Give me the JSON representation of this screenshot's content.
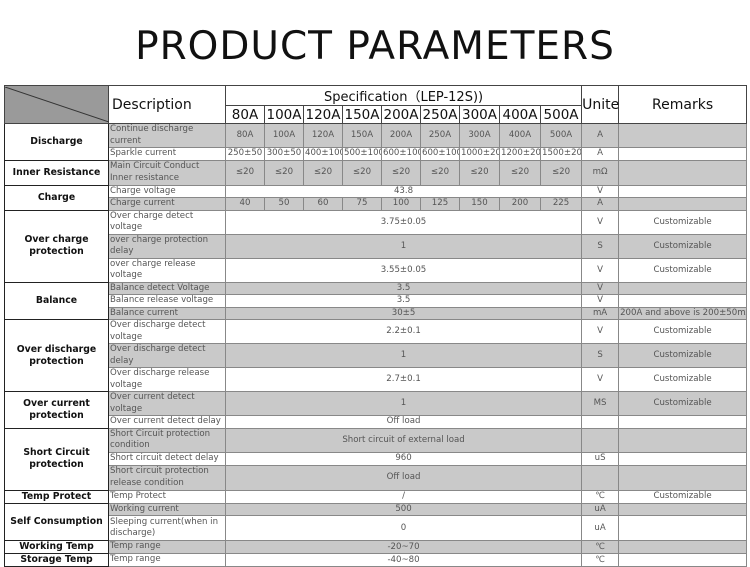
{
  "title": "PRODUCT PARAMETERS",
  "header": {
    "description": "Description",
    "specification": "Specification（LEP-12S))",
    "sizes": [
      "80A",
      "100A",
      "120A",
      "150A",
      "200A",
      "250A",
      "300A",
      "400A",
      "500A"
    ],
    "unit": "Unite",
    "remarks": "Remarks"
  },
  "groups": [
    {
      "category": "Discharge",
      "rows": [
        {
          "desc": "Continue discharge current",
          "values": [
            "80A",
            "100A",
            "120A",
            "150A",
            "200A",
            "250A",
            "300A",
            "400A",
            "500A"
          ],
          "unit": "A",
          "remark": ""
        },
        {
          "desc": "Sparkle current",
          "values": [
            "250±50",
            "300±50",
            "400±100",
            "500±100",
            "600±100",
            "600±100",
            "1000±200",
            "1200±200",
            "1500±200"
          ],
          "unit": "A",
          "remark": ""
        }
      ]
    },
    {
      "category": "Inner Resistance",
      "rows": [
        {
          "desc": "Main Circuit Conduct Inner resistance",
          "values": [
            "≤20",
            "≤20",
            "≤20",
            "≤20",
            "≤20",
            "≤20",
            "≤20",
            "≤20",
            "≤20"
          ],
          "unit": "mΩ",
          "remark": ""
        }
      ]
    },
    {
      "category": "Charge",
      "rows": [
        {
          "desc": "Charge voltage",
          "value": "43.8",
          "unit": "V",
          "remark": ""
        },
        {
          "desc": "Charge current",
          "values": [
            "40",
            "50",
            "60",
            "75",
            "100",
            "125",
            "150",
            "200",
            "225"
          ],
          "unit": "A",
          "remark": ""
        }
      ]
    },
    {
      "category": "Over charge protection",
      "rows": [
        {
          "desc": "Over charge detect voltage",
          "value": "3.75±0.05",
          "unit": "V",
          "remark": "Customizable"
        },
        {
          "desc": "over charge protection delay",
          "value": "1",
          "unit": "S",
          "remark": "Customizable"
        },
        {
          "desc": "over charge release voltage",
          "value": "3.55±0.05",
          "unit": "V",
          "remark": "Customizable"
        }
      ]
    },
    {
      "category": "Balance",
      "rows": [
        {
          "desc": "Balance detect Voltage",
          "value": "3.5",
          "unit": "V",
          "remark": ""
        },
        {
          "desc": "Balance release voltage",
          "value": "3.5",
          "unit": "V",
          "remark": ""
        },
        {
          "desc": "Balance current",
          "value": "30±5",
          "unit": "mA",
          "remark": "200A and above is 200±50mA"
        }
      ]
    },
    {
      "category": "Over discharge protection",
      "rows": [
        {
          "desc": "Over discharge detect voltage",
          "value": "2.2±0.1",
          "unit": "V",
          "remark": "Customizable"
        },
        {
          "desc": "Over discharge detect delay",
          "value": "1",
          "unit": "S",
          "remark": "Customizable"
        },
        {
          "desc": "Over discharge release voltage",
          "value": "2.7±0.1",
          "unit": "V",
          "remark": "Customizable"
        }
      ]
    },
    {
      "category": "Over current protection",
      "rows": [
        {
          "desc": "Over current detect voltage",
          "value": "1",
          "unit": "MS",
          "remark": "Customizable"
        },
        {
          "desc": "Over current detect delay",
          "value": "Off load",
          "unit": "",
          "remark": ""
        }
      ]
    },
    {
      "category": "Short Circuit protection",
      "rows": [
        {
          "desc": "Short Circuit protection condition",
          "value": "Short circuit of external load",
          "unit": "",
          "remark": ""
        },
        {
          "desc": "Short circuit detect delay",
          "value": "960",
          "unit": "uS",
          "remark": ""
        },
        {
          "desc": "Short circuit protection release condition",
          "value": "Off load",
          "unit": "",
          "remark": ""
        }
      ]
    },
    {
      "category": "Temp Protect",
      "rows": [
        {
          "desc": "Temp Protect",
          "value": "/",
          "unit": "℃",
          "remark": "Customizable"
        }
      ]
    },
    {
      "category": "Self Consumption",
      "rows": [
        {
          "desc": "Working current",
          "value": "500",
          "unit": "uA",
          "remark": ""
        },
        {
          "desc": "Sleeping current(when  in discharge)",
          "value": "0",
          "unit": "uA",
          "remark": ""
        }
      ]
    },
    {
      "category": "Working Temp",
      "rows": [
        {
          "desc": "Temp range",
          "value": "-20~70",
          "unit": "℃",
          "remark": ""
        }
      ]
    },
    {
      "category": "Storage Temp",
      "rows": [
        {
          "desc": "Temp range",
          "value": "-40~80",
          "unit": "℃",
          "remark": ""
        }
      ]
    }
  ]
}
